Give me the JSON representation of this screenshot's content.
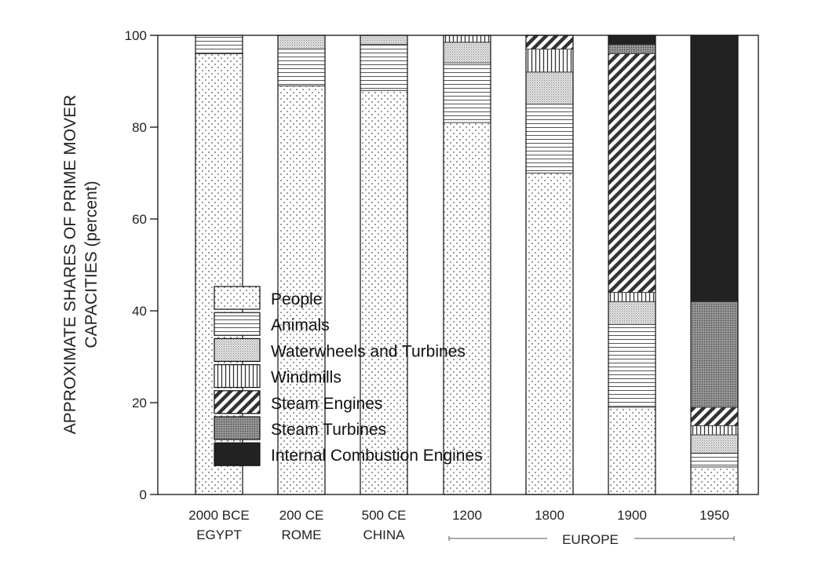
{
  "chart_data": {
    "type": "bar",
    "stacked": true,
    "ylabel_line1": "APPROXIMATE SHARES OF PRIME MOVER",
    "ylabel_line2": "CAPACITIES (percent)",
    "ylim": [
      0,
      100
    ],
    "yticks": [
      "0",
      "20",
      "40",
      "60",
      "80",
      "100"
    ],
    "categories": [
      {
        "line1": "2000 BCE",
        "line2": "EGYPT"
      },
      {
        "line1": "200 CE",
        "line2": "ROME"
      },
      {
        "line1": "500 CE",
        "line2": "CHINA"
      },
      {
        "line1": "1200",
        "line2": ""
      },
      {
        "line1": "1800",
        "line2": ""
      },
      {
        "line1": "1900",
        "line2": ""
      },
      {
        "line1": "1950",
        "line2": ""
      }
    ],
    "group_label": "EUROPE",
    "legend_position": "inside-left",
    "series": [
      {
        "name": "People",
        "pattern": "dots",
        "values": [
          96,
          89,
          88,
          81,
          70,
          19,
          6
        ]
      },
      {
        "name": "Animals",
        "pattern": "horizontal-lines",
        "values": [
          4,
          8,
          10,
          13,
          15,
          18,
          3
        ]
      },
      {
        "name": "Waterwheels and Turbines",
        "pattern": "fine-stipple",
        "values": [
          0,
          3,
          2,
          4.5,
          7,
          5,
          4
        ]
      },
      {
        "name": "Windmills",
        "pattern": "vertical-lines",
        "values": [
          0,
          0,
          0,
          1.5,
          5,
          2,
          2
        ]
      },
      {
        "name": "Steam Engines",
        "pattern": "diagonal-lines",
        "values": [
          0,
          0,
          0,
          0,
          3,
          52,
          4
        ]
      },
      {
        "name": "Steam Turbines",
        "pattern": "dense-stipple",
        "values": [
          0,
          0,
          0,
          0,
          0,
          2,
          23
        ]
      },
      {
        "name": "Internal Combustion Engines",
        "pattern": "solid-dark",
        "values": [
          0,
          0,
          0,
          0,
          0,
          2,
          58
        ]
      }
    ]
  }
}
